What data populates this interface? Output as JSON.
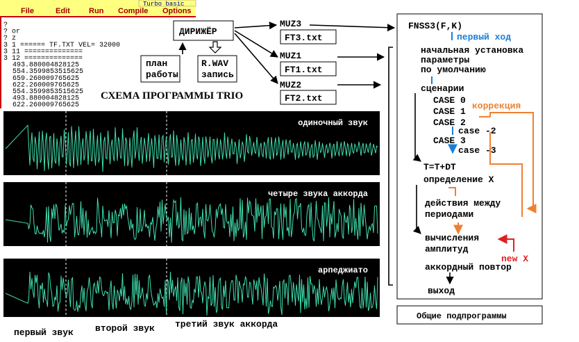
{
  "editor": {
    "title": "Turbo basic",
    "menu": [
      "File",
      "Edit",
      "Run",
      "Compile",
      "Options"
    ],
    "lines": [
      "?",
      "? or",
      "? z",
      "3   1 ====== TF.TXT   VEL= 32000",
      "3   11 ==============",
      "3   12 ==============",
      "493.880004828125",
      "554.3599853515625",
      "659.260009765625",
      "622.260009765625",
      "554.3599853515625",
      "493.880004828125",
      "622.260009765625"
    ]
  },
  "diagram": {
    "conductor": "ДИРИЖЁР",
    "plan": [
      "план",
      "работы"
    ],
    "record": [
      "R.WAV",
      "запись"
    ],
    "modules": [
      {
        "name": "MUZ3",
        "file": "FT3.txt"
      },
      {
        "name": "MUZ1",
        "file": "FT1.txt"
      },
      {
        "name": "MUZ2",
        "file": "FT2.txt"
      }
    ]
  },
  "title": "СХЕМА ПРОГРАММЫ TRIO",
  "waveforms": [
    {
      "label": "одиночный звук"
    },
    {
      "label": "четыре звука аккорда"
    },
    {
      "label": "арпеджиато"
    }
  ],
  "bottom_labels": [
    "первый звук",
    "второй звук",
    "третий звук аккорда"
  ],
  "flow": {
    "header": "FNSS3(F,K)",
    "first_move": "первый ход",
    "init": [
      "начальная установка",
      "параметры",
      "по умолчанию"
    ],
    "scenarios": "сценарии",
    "cases": [
      "CASE 0",
      "CASE 1",
      "CASE 2",
      "CASE 3"
    ],
    "subcases": [
      "case -2",
      "case -3"
    ],
    "correction": "коррекция",
    "step": "T=T+DT",
    "define": "определение X",
    "between": [
      "действия между",
      "периодами"
    ],
    "compute": [
      "вычисления",
      "амплитуд"
    ],
    "new_x": "new X",
    "repeat": "аккордный повтор",
    "exit": "выход"
  },
  "common": "Общие подпрограммы"
}
